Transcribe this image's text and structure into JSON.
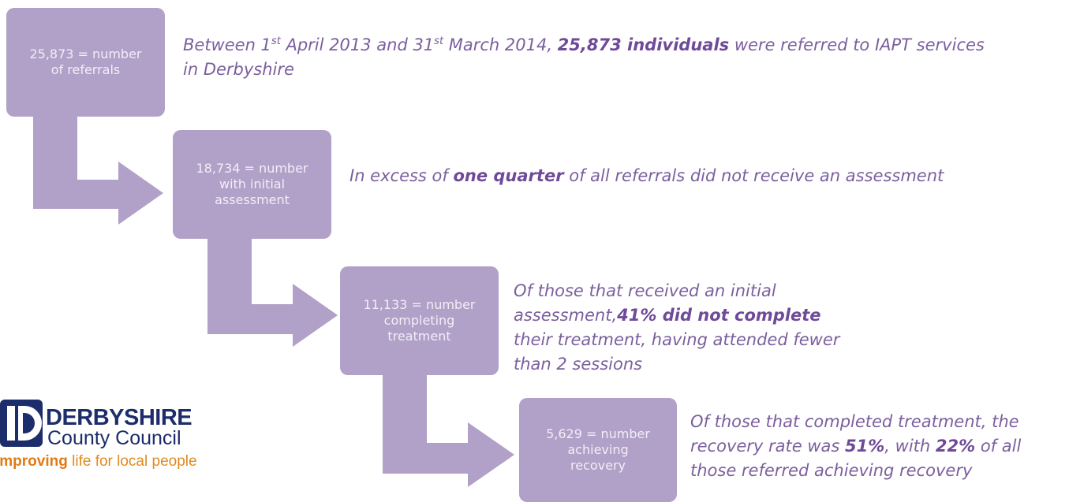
{
  "steps": [
    {
      "box": [
        "25,873 = number",
        "of referrals"
      ],
      "description": [
        {
          "text": "Between 1"
        },
        {
          "sup": "st"
        },
        {
          "text": " April 2013 and 31"
        },
        {
          "sup": "st"
        },
        {
          "text": " March 2014, "
        },
        {
          "bold": "25,873 individuals"
        },
        {
          "text": " were referred to IAPT services in Derbyshire"
        }
      ]
    },
    {
      "box": [
        "18,734 = number",
        "with initial",
        "assessment"
      ],
      "description": [
        {
          "text": "In excess of "
        },
        {
          "bold": "one quarter"
        },
        {
          "text": " of all referrals did not receive an assessment"
        }
      ]
    },
    {
      "box": [
        "11,133 = number",
        "completing",
        "treatment"
      ],
      "description": [
        {
          "text": "Of those that received an initial assessment,"
        },
        {
          "bold": "41% did not complete"
        },
        {
          "text": " their treatment, having attended fewer than 2 sessions"
        }
      ]
    },
    {
      "box": [
        "5,629 = number",
        "achieving",
        "recovery"
      ],
      "description": [
        {
          "text": "Of those that completed treatment, the recovery rate was "
        },
        {
          "bold": "51%"
        },
        {
          "text": ", with "
        },
        {
          "bold": "22%"
        },
        {
          "text": " of all those referred achieving recovery"
        }
      ]
    }
  ],
  "logo": {
    "name": "DERBYSHIRE",
    "sub": "County Council",
    "tagline_bold": "improving",
    "tagline": " life for local people"
  }
}
